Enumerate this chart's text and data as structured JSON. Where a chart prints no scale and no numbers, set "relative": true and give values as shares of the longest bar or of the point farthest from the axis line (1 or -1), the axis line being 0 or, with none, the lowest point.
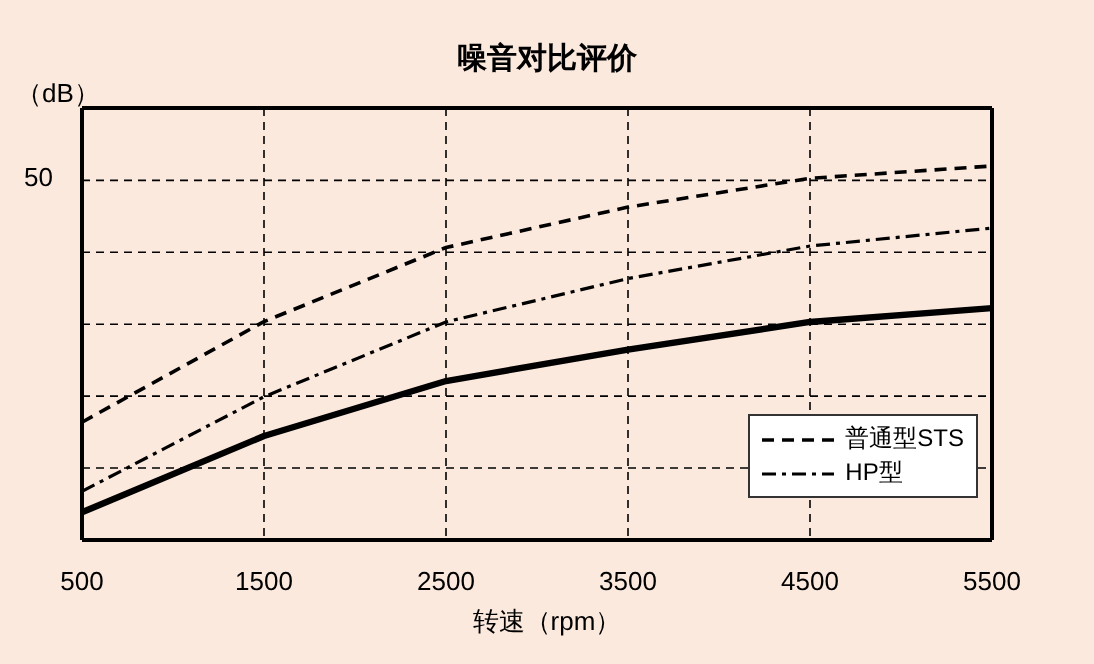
{
  "chart_data": {
    "type": "line",
    "title": "噪音对比评价",
    "xlabel": "转速（rpm）",
    "ylabel": "（dB）",
    "relative": true,
    "x": [
      500,
      1500,
      2500,
      3500,
      4500,
      5500
    ],
    "xlim": [
      500,
      5500
    ],
    "xticks": [
      500,
      1500,
      2500,
      3500,
      4500,
      5500
    ],
    "annotations": [
      "50"
    ],
    "grid": true,
    "legend": "bottom right",
    "marker": "none",
    "series": [
      {
        "name": "普通型STS",
        "color": "#000000",
        "line_style": "dashed",
        "values": [
          0.315,
          0.584,
          0.782,
          0.89,
          0.967,
          1
        ]
      },
      {
        "name": "HP型",
        "color": "#000000",
        "line_style": "dashdot",
        "values": [
          0.13,
          0.383,
          0.583,
          0.699,
          0.786,
          0.834
        ]
      },
      {
        "color": "#000000",
        "line_style": "solid",
        "values": [
          0.074,
          0.278,
          0.425,
          0.509,
          0.583,
          0.62
        ]
      }
    ]
  }
}
